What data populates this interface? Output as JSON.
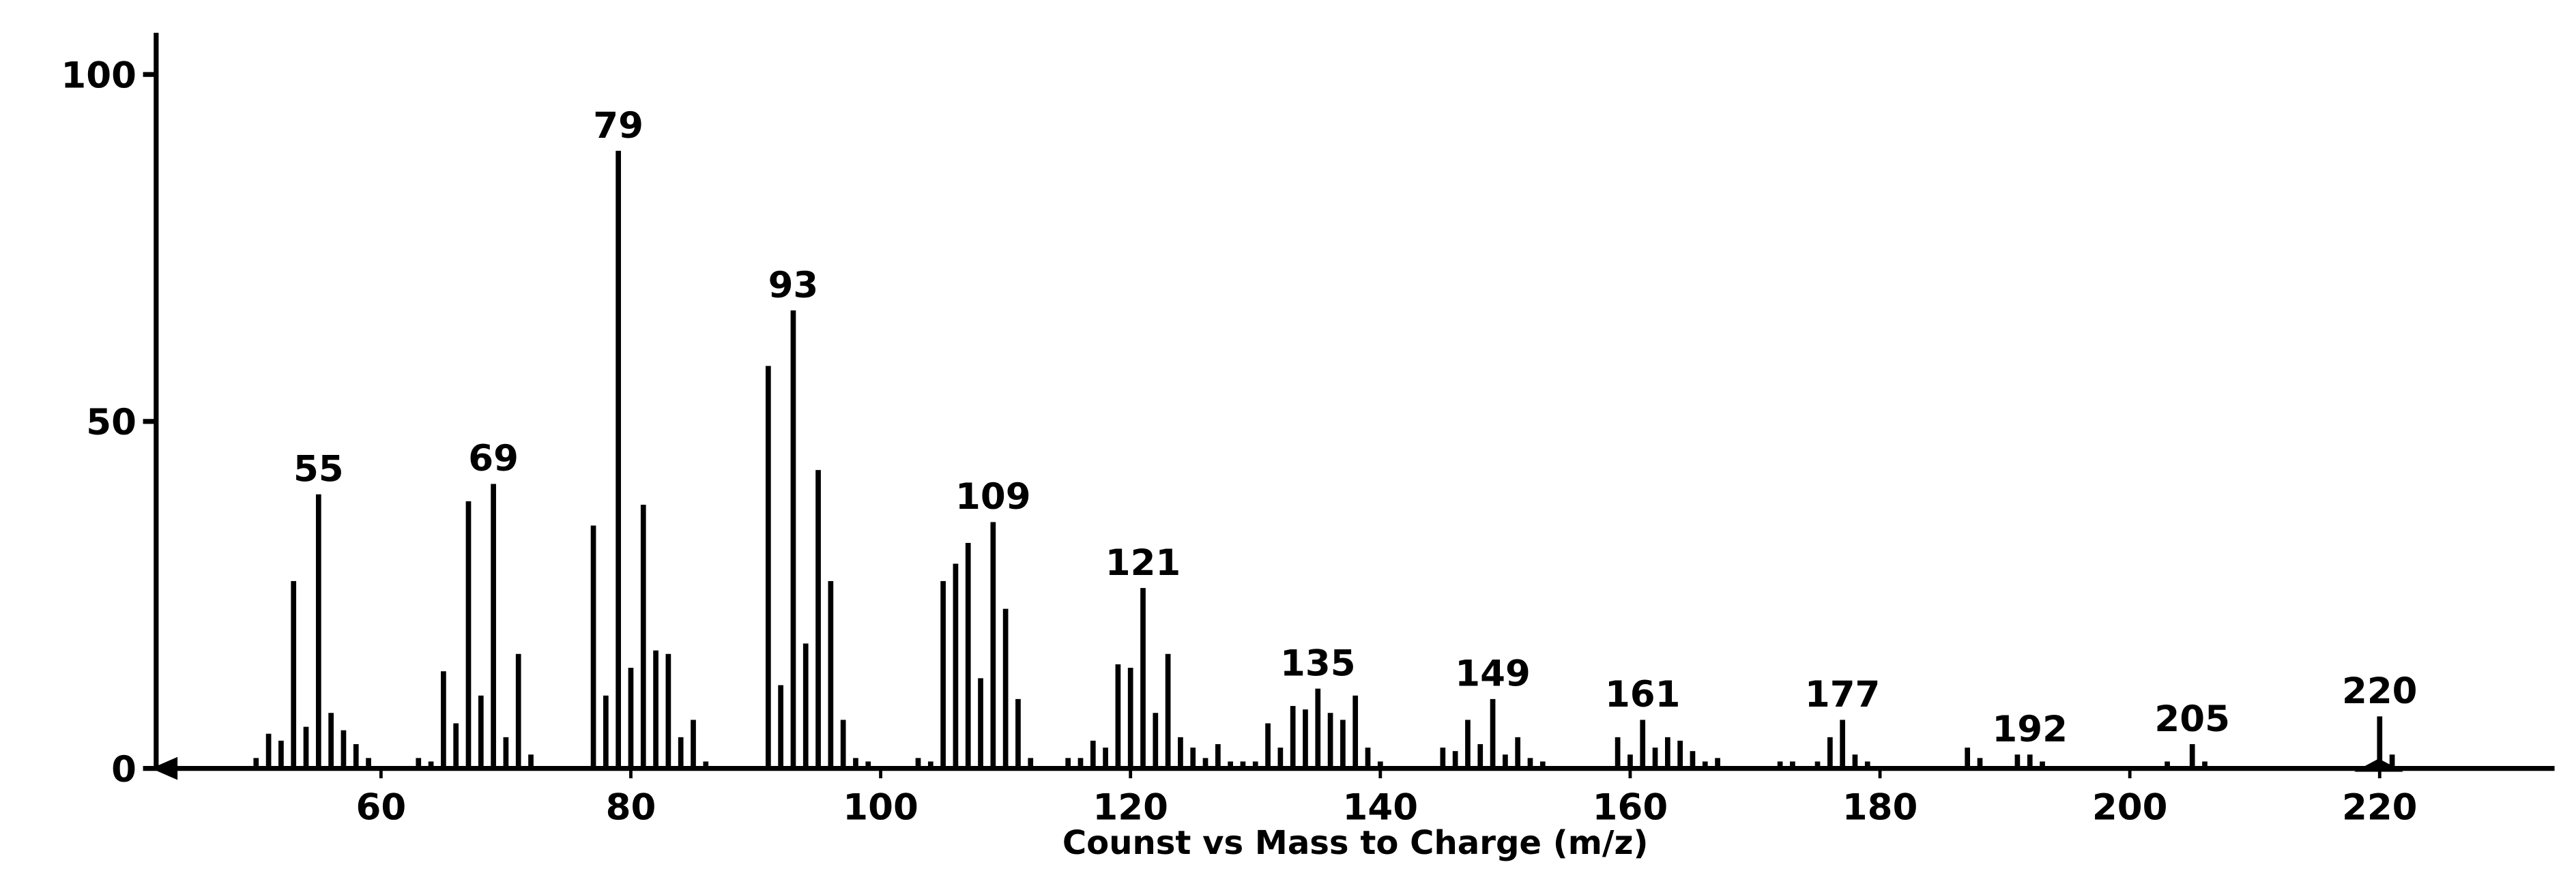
{
  "chart_data": {
    "type": "bar",
    "x_label": "Counst vs Mass to Charge (m/z)",
    "color": "#000000",
    "xlim": [
      42,
      234
    ],
    "ylim": [
      0,
      106
    ],
    "xticks": [
      60,
      80,
      100,
      120,
      140,
      160,
      180,
      200,
      220
    ],
    "yticks": [
      0,
      50,
      100
    ],
    "x": [
      50,
      51,
      52,
      53,
      54,
      55,
      56,
      57,
      58,
      59,
      63,
      64,
      65,
      66,
      67,
      68,
      69,
      70,
      71,
      72,
      77,
      78,
      79,
      80,
      81,
      82,
      83,
      84,
      85,
      86,
      91,
      92,
      93,
      94,
      95,
      96,
      97,
      98,
      99,
      103,
      104,
      105,
      106,
      107,
      108,
      109,
      110,
      111,
      112,
      115,
      116,
      117,
      118,
      119,
      120,
      121,
      122,
      123,
      124,
      125,
      126,
      127,
      128,
      129,
      130,
      131,
      132,
      133,
      134,
      135,
      136,
      137,
      138,
      139,
      140,
      145,
      146,
      147,
      148,
      149,
      150,
      151,
      152,
      153,
      159,
      160,
      161,
      162,
      163,
      164,
      165,
      166,
      167,
      172,
      173,
      175,
      176,
      177,
      178,
      179,
      187,
      188,
      191,
      192,
      193,
      203,
      205,
      206,
      220,
      221
    ],
    "values": [
      1.5,
      5,
      4,
      27,
      6,
      39.5,
      8,
      5.5,
      3.5,
      1.5,
      1.5,
      1,
      14,
      6.5,
      38.5,
      10.5,
      41,
      4.5,
      16.5,
      2,
      35,
      10.5,
      89,
      14.5,
      38,
      17,
      16.5,
      4.5,
      7,
      1,
      58,
      12,
      66,
      18,
      43,
      27,
      7,
      1.5,
      1,
      1.5,
      1,
      27,
      29.5,
      32.5,
      13,
      35.5,
      23,
      10,
      1.5,
      1.5,
      1.5,
      4,
      3,
      15,
      14.5,
      26,
      8,
      16.5,
      4.5,
      3,
      1.5,
      3.5,
      1,
      1,
      1,
      6.5,
      3,
      9,
      8.5,
      11.5,
      8,
      7,
      10.5,
      3,
      1,
      3,
      2.5,
      7,
      3.5,
      10,
      2,
      4.5,
      1.5,
      1,
      4.5,
      2,
      7,
      3,
      4.5,
      4,
      2.5,
      1,
      1.5,
      1,
      1,
      1,
      4.5,
      7,
      2,
      1,
      3,
      1.5,
      2,
      2,
      1,
      1,
      3.5,
      1,
      7.5,
      2
    ],
    "peak_labels": [
      55,
      69,
      79,
      93,
      109,
      121,
      135,
      149,
      161,
      177,
      192,
      205,
      220
    ]
  }
}
